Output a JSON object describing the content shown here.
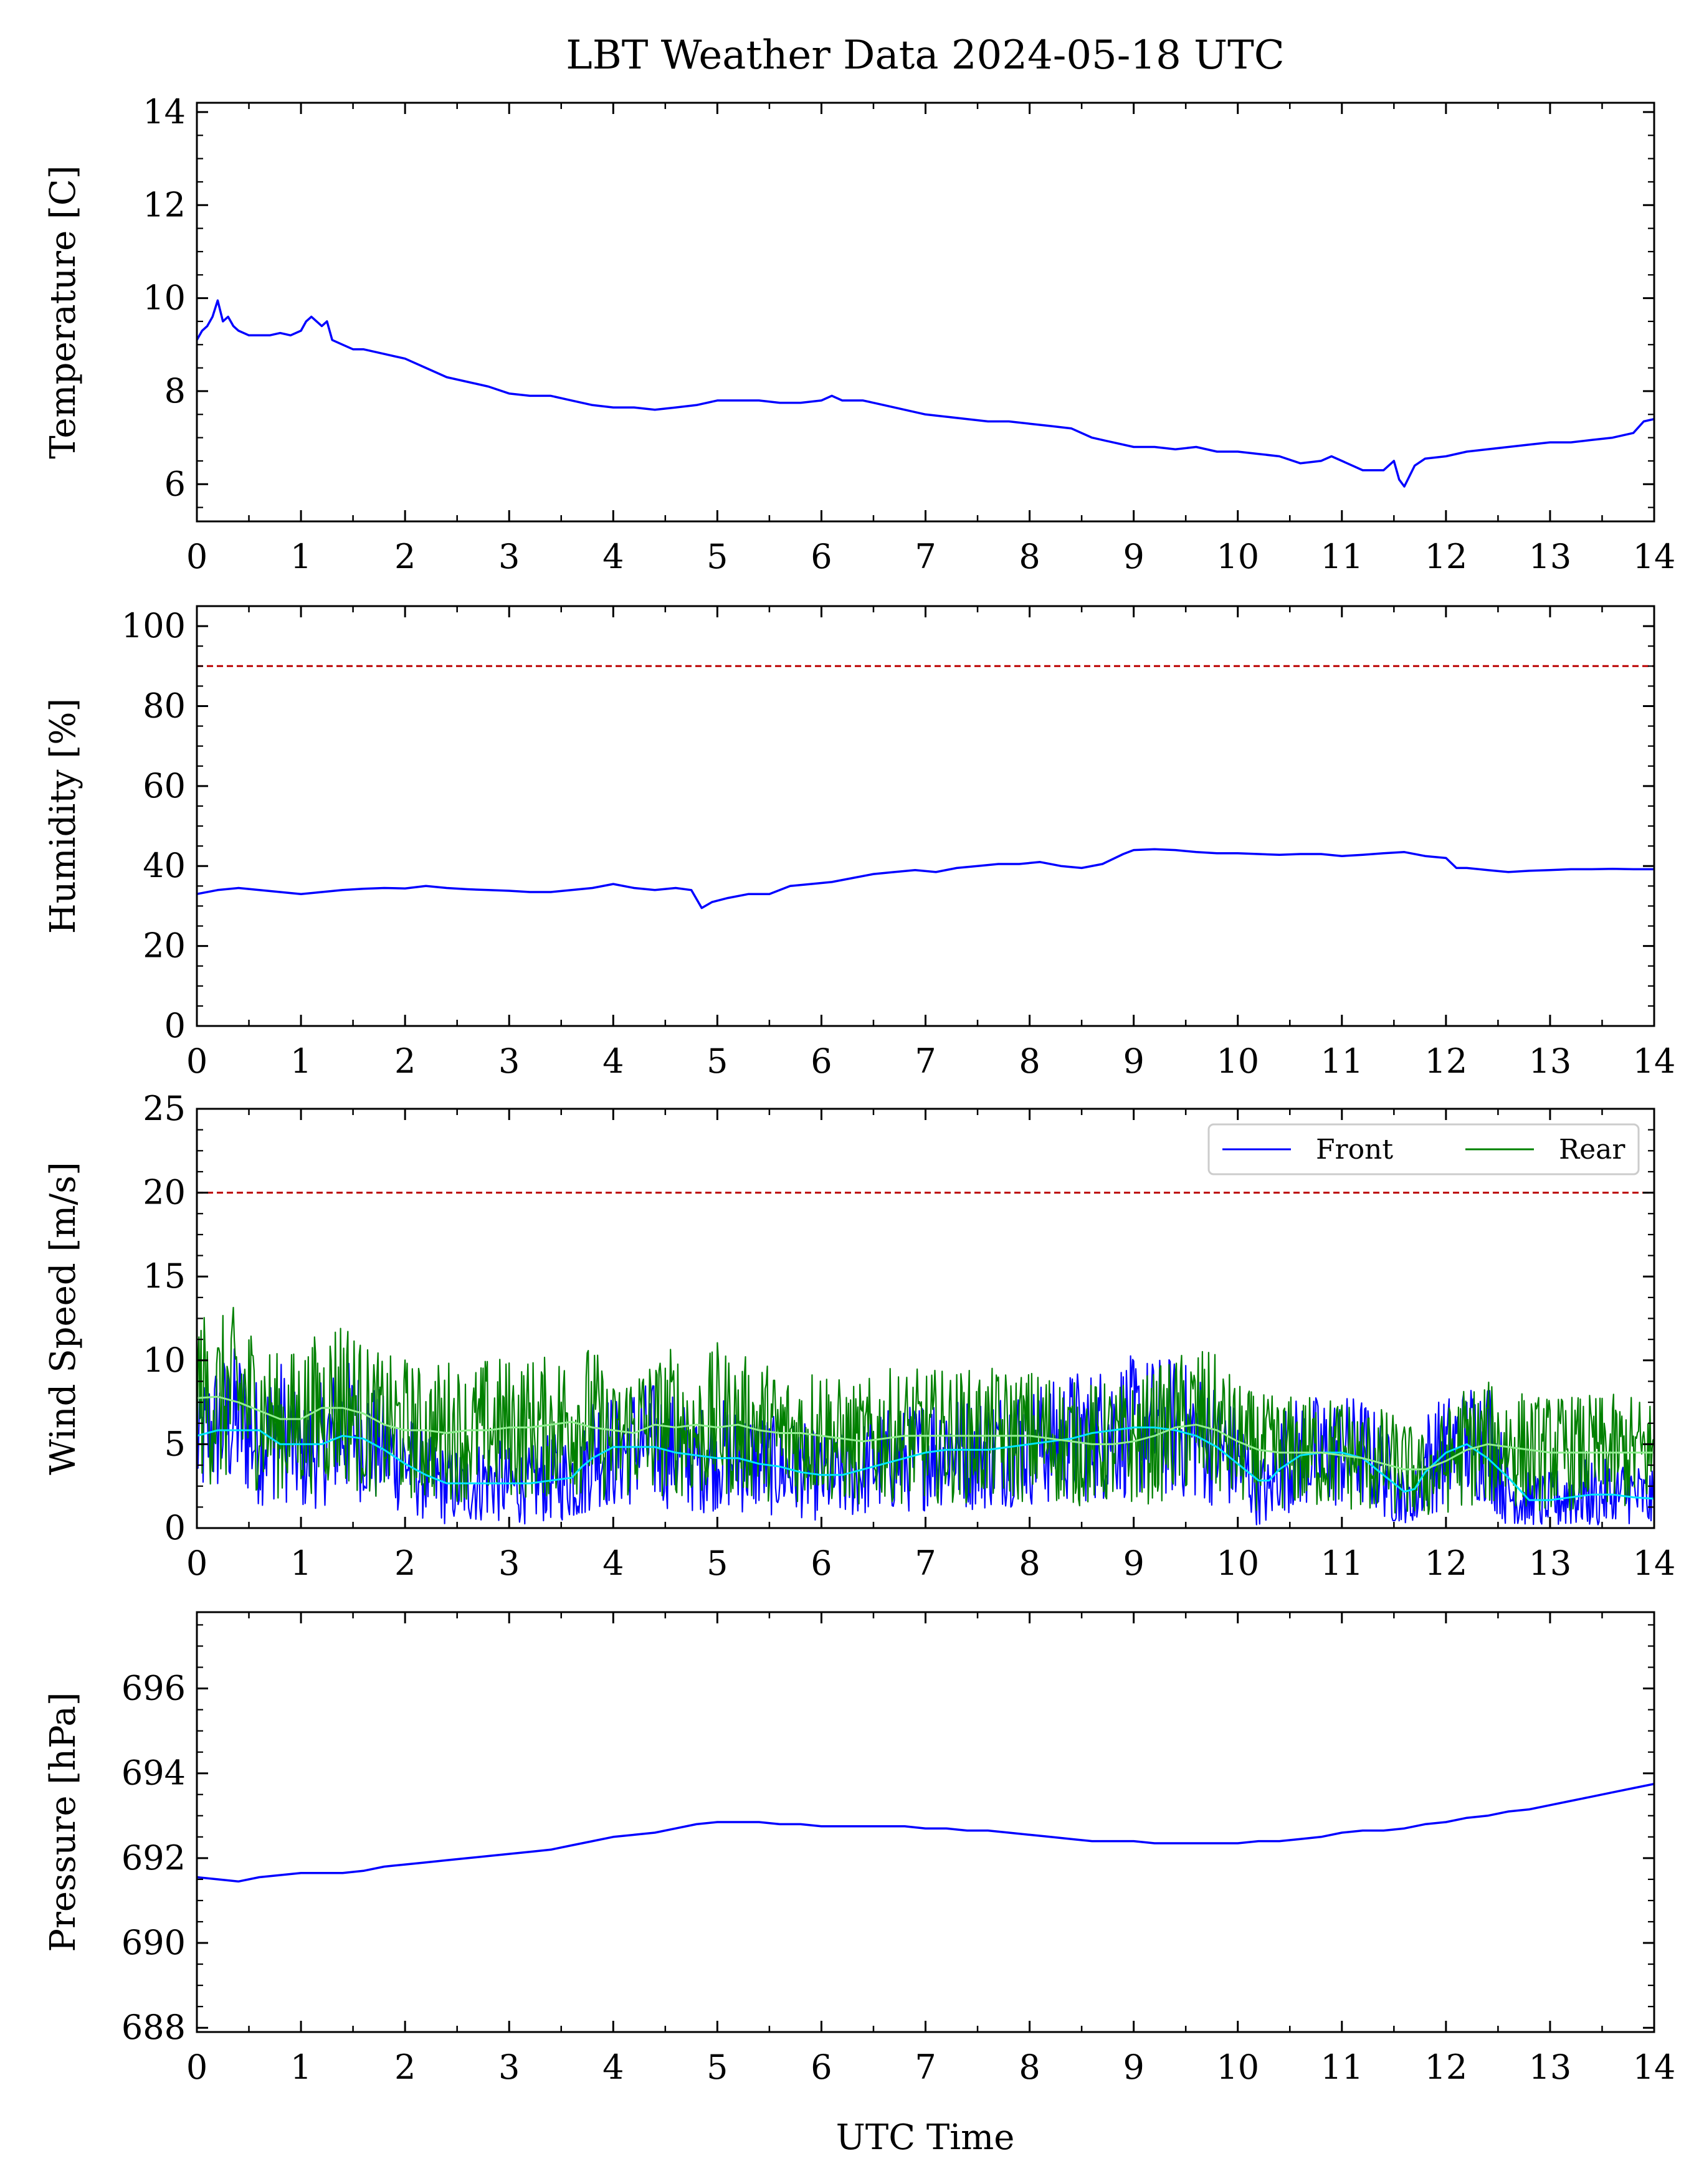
{
  "chart_data": {
    "type": "line",
    "title": "LBT Weather Data 2024-05-18 UTC",
    "xlabel": "UTC Time",
    "xlim": [
      0,
      14
    ],
    "x_ticks": [
      0,
      1,
      2,
      3,
      4,
      5,
      6,
      7,
      8,
      9,
      10,
      11,
      12,
      13,
      14
    ],
    "panels": [
      {
        "id": "temperature",
        "ylabel": "Temperature [C]",
        "ylim": [
          5.2,
          14.2
        ],
        "y_ticks": [
          6,
          8,
          10,
          12,
          14
        ],
        "series": [
          {
            "color": "#0000ff",
            "x": [
              0,
              0.05,
              0.1,
              0.15,
              0.2,
              0.25,
              0.3,
              0.35,
              0.4,
              0.5,
              0.6,
              0.7,
              0.8,
              0.9,
              1.0,
              1.05,
              1.1,
              1.15,
              1.2,
              1.25,
              1.3,
              1.4,
              1.5,
              1.6,
              1.8,
              2.0,
              2.2,
              2.4,
              2.6,
              2.8,
              3.0,
              3.2,
              3.4,
              3.6,
              3.8,
              4.0,
              4.2,
              4.4,
              4.6,
              4.8,
              5.0,
              5.2,
              5.4,
              5.6,
              5.8,
              6.0,
              6.1,
              6.2,
              6.4,
              6.6,
              6.8,
              7.0,
              7.2,
              7.4,
              7.6,
              7.8,
              8.0,
              8.2,
              8.4,
              8.6,
              8.8,
              9.0,
              9.2,
              9.4,
              9.6,
              9.8,
              10.0,
              10.2,
              10.4,
              10.6,
              10.8,
              10.9,
              11.0,
              11.2,
              11.4,
              11.5,
              11.55,
              11.6,
              11.7,
              11.8,
              12.0,
              12.2,
              12.4,
              12.6,
              12.8,
              13.0,
              13.2,
              13.4,
              13.6,
              13.8,
              13.9,
              14.0
            ],
            "y": [
              9.1,
              9.3,
              9.4,
              9.6,
              9.95,
              9.5,
              9.6,
              9.4,
              9.3,
              9.2,
              9.2,
              9.2,
              9.25,
              9.2,
              9.3,
              9.5,
              9.6,
              9.5,
              9.4,
              9.5,
              9.1,
              9.0,
              8.9,
              8.9,
              8.8,
              8.7,
              8.5,
              8.3,
              8.2,
              8.1,
              7.95,
              7.9,
              7.9,
              7.8,
              7.7,
              7.65,
              7.65,
              7.6,
              7.65,
              7.7,
              7.8,
              7.8,
              7.8,
              7.75,
              7.75,
              7.8,
              7.9,
              7.8,
              7.8,
              7.7,
              7.6,
              7.5,
              7.45,
              7.4,
              7.35,
              7.35,
              7.3,
              7.25,
              7.2,
              7.0,
              6.9,
              6.8,
              6.8,
              6.75,
              6.8,
              6.7,
              6.7,
              6.65,
              6.6,
              6.45,
              6.5,
              6.6,
              6.5,
              6.3,
              6.3,
              6.5,
              6.1,
              5.95,
              6.4,
              6.55,
              6.6,
              6.7,
              6.75,
              6.8,
              6.85,
              6.9,
              6.9,
              6.95,
              7.0,
              7.1,
              7.35,
              7.4
            ]
          }
        ]
      },
      {
        "id": "humidity",
        "ylabel": "Humidity [%]",
        "ylim": [
          0,
          105
        ],
        "y_ticks": [
          0,
          20,
          40,
          60,
          80,
          100
        ],
        "threshold": 90,
        "threshold_color": "#bb0000",
        "series": [
          {
            "color": "#0000ff",
            "x": [
              0,
              0.2,
              0.4,
              0.6,
              0.8,
              1.0,
              1.2,
              1.4,
              1.6,
              1.8,
              2.0,
              2.2,
              2.4,
              2.6,
              2.8,
              3.0,
              3.2,
              3.4,
              3.6,
              3.8,
              4.0,
              4.2,
              4.4,
              4.6,
              4.75,
              4.85,
              4.95,
              5.1,
              5.3,
              5.5,
              5.7,
              5.9,
              6.1,
              6.3,
              6.5,
              6.7,
              6.9,
              7.1,
              7.3,
              7.5,
              7.7,
              7.9,
              8.1,
              8.3,
              8.5,
              8.7,
              8.9,
              9.0,
              9.2,
              9.4,
              9.6,
              9.8,
              10.0,
              10.2,
              10.4,
              10.6,
              10.8,
              11.0,
              11.2,
              11.4,
              11.6,
              11.8,
              12.0,
              12.1,
              12.2,
              12.4,
              12.6,
              12.8,
              13.0,
              13.2,
              13.4,
              13.6,
              13.8,
              14.0
            ],
            "y": [
              33,
              34,
              34.5,
              34,
              33.5,
              33,
              33.5,
              34,
              34.3,
              34.5,
              34.4,
              35,
              34.5,
              34.2,
              34,
              33.8,
              33.5,
              33.5,
              34,
              34.5,
              35.5,
              34.5,
              34,
              34.5,
              34,
              29.5,
              31,
              32,
              33,
              33,
              35,
              35.5,
              36,
              37,
              38,
              38.5,
              39,
              38.5,
              39.5,
              40,
              40.5,
              40.5,
              41,
              40,
              39.5,
              40.5,
              43,
              44,
              44.2,
              44,
              43.5,
              43.2,
              43.2,
              43,
              42.8,
              43,
              43,
              42.5,
              42.8,
              43.2,
              43.5,
              42.5,
              42,
              39.5,
              39.5,
              39,
              38.5,
              38.8,
              39,
              39.2,
              39.2,
              39.3,
              39.2,
              39.2
            ]
          }
        ]
      },
      {
        "id": "wind_speed",
        "ylabel": "Wind Speed [m/s]",
        "ylim": [
          0,
          25
        ],
        "y_ticks": [
          0,
          5,
          10,
          15,
          20,
          25
        ],
        "threshold": 20,
        "threshold_color": "#bb0000",
        "legend_position": "top-right",
        "series": [
          {
            "name": "Front",
            "color": "#0000ff",
            "x": [
              0,
              0.2,
              0.4,
              0.6,
              0.8,
              1.0,
              1.2,
              1.4,
              1.6,
              1.8,
              2.0,
              2.2,
              2.4,
              2.6,
              2.8,
              3.0,
              3.2,
              3.4,
              3.6,
              3.7,
              3.8,
              4.0,
              4.2,
              4.4,
              4.6,
              4.8,
              5.0,
              5.2,
              5.4,
              5.6,
              5.8,
              6.0,
              6.2,
              6.4,
              6.6,
              6.8,
              7.0,
              7.2,
              7.4,
              7.6,
              7.8,
              8.0,
              8.2,
              8.4,
              8.6,
              8.8,
              9.0,
              9.2,
              9.4,
              9.6,
              9.8,
              10.0,
              10.2,
              10.3,
              10.4,
              10.6,
              10.8,
              11.0,
              11.2,
              11.4,
              11.6,
              11.7,
              11.8,
              12.0,
              12.2,
              12.4,
              12.6,
              12.8,
              13.0,
              13.2,
              13.4,
              13.6,
              13.8,
              14.0
            ],
            "y": [
              5,
              6,
              6.5,
              5,
              6,
              4,
              5,
              6,
              5.5,
              4.5,
              4,
              3,
              2.5,
              2.5,
              3,
              2.5,
              2.5,
              3,
              3,
              3,
              5,
              4.5,
              5,
              5,
              4.5,
              4,
              4.5,
              4,
              4,
              3.5,
              3.5,
              3,
              3,
              3.5,
              4,
              4,
              4.5,
              5,
              4.5,
              4.5,
              5,
              5,
              5,
              5.5,
              5.5,
              6,
              6,
              6,
              6,
              5.5,
              5,
              4,
              2.5,
              2,
              4,
              4.5,
              4.5,
              4.5,
              4.5,
              3.5,
              1.5,
              1.5,
              4,
              4.5,
              5,
              5.5,
              2,
              1.5,
              1.5,
              2,
              2,
              2,
              2,
              1.5
            ],
            "smoothed_color": "#00e5ff"
          },
          {
            "name": "Rear",
            "color": "#008000",
            "x": [
              0,
              0.2,
              0.4,
              0.6,
              0.8,
              1.0,
              1.2,
              1.4,
              1.6,
              1.8,
              2.0,
              2.2,
              2.4,
              2.6,
              2.8,
              3.0,
              3.2,
              3.4,
              3.6,
              3.8,
              4.0,
              4.2,
              4.4,
              4.6,
              4.8,
              5.0,
              5.2,
              5.4,
              5.6,
              5.8,
              6.0,
              6.2,
              6.4,
              6.6,
              6.8,
              7.0,
              7.2,
              7.4,
              7.6,
              7.8,
              8.0,
              8.2,
              8.4,
              8.6,
              8.8,
              9.0,
              9.2,
              9.4,
              9.6,
              9.8,
              10.0,
              10.2,
              10.4,
              10.6,
              10.8,
              11.0,
              11.2,
              11.4,
              11.6,
              11.8,
              12.0,
              12.2,
              12.4,
              12.6,
              12.8,
              13.0,
              13.2,
              13.4,
              13.6,
              13.8,
              14.0
            ],
            "y": [
              8,
              7.5,
              8,
              7,
              6,
              6.5,
              7,
              8,
              6.5,
              6,
              6,
              5.5,
              6,
              5.5,
              6,
              6,
              6,
              6,
              6.5,
              6.5,
              5,
              6,
              6,
              6.5,
              5.5,
              6.5,
              6,
              6,
              5.5,
              5.5,
              6,
              5,
              5,
              5.5,
              5.5,
              5.5,
              5.5,
              5.5,
              5.5,
              5.5,
              5.5,
              5.5,
              5,
              5,
              5,
              5,
              5.5,
              6,
              6.5,
              6,
              5,
              4.5,
              4.5,
              4.5,
              4.5,
              4.5,
              4,
              4,
              3.5,
              3,
              4,
              5,
              5,
              5,
              4.5,
              4.5,
              4.5,
              4.5,
              4.5,
              4.5,
              4.5
            ],
            "smoothed_color": "#90ee90"
          }
        ]
      },
      {
        "id": "pressure",
        "ylabel": "Pressure [hPa]",
        "ylim": [
          687.9,
          697.8
        ],
        "y_ticks": [
          688,
          690,
          692,
          694,
          696
        ],
        "series": [
          {
            "color": "#0000ff",
            "x": [
              0,
              0.2,
              0.4,
              0.6,
              0.8,
              1.0,
              1.2,
              1.4,
              1.6,
              1.8,
              2.0,
              2.2,
              2.4,
              2.6,
              2.8,
              3.0,
              3.2,
              3.4,
              3.6,
              3.8,
              4.0,
              4.2,
              4.4,
              4.6,
              4.8,
              5.0,
              5.2,
              5.4,
              5.6,
              5.8,
              6.0,
              6.2,
              6.4,
              6.6,
              6.8,
              7.0,
              7.2,
              7.4,
              7.6,
              7.8,
              8.0,
              8.2,
              8.4,
              8.6,
              8.8,
              9.0,
              9.2,
              9.4,
              9.6,
              9.8,
              10.0,
              10.2,
              10.4,
              10.6,
              10.8,
              11.0,
              11.2,
              11.4,
              11.6,
              11.8,
              12.0,
              12.2,
              12.4,
              12.6,
              12.8,
              13.0,
              13.2,
              13.4,
              13.6,
              13.8,
              14.0
            ],
            "y": [
              691.55,
              691.5,
              691.45,
              691.55,
              691.6,
              691.65,
              691.65,
              691.65,
              691.7,
              691.8,
              691.85,
              691.9,
              691.95,
              692.0,
              692.05,
              692.1,
              692.15,
              692.2,
              692.3,
              692.4,
              692.5,
              692.55,
              692.6,
              692.7,
              692.8,
              692.85,
              692.85,
              692.85,
              692.8,
              692.8,
              692.75,
              692.75,
              692.75,
              692.75,
              692.75,
              692.7,
              692.7,
              692.65,
              692.65,
              692.6,
              692.55,
              692.5,
              692.45,
              692.4,
              692.4,
              692.4,
              692.35,
              692.35,
              692.35,
              692.35,
              692.35,
              692.4,
              692.4,
              692.45,
              692.5,
              692.6,
              692.65,
              692.65,
              692.7,
              692.8,
              692.85,
              692.95,
              693.0,
              693.1,
              693.15,
              693.25,
              693.35,
              693.45,
              693.55,
              693.65,
              693.75
            ]
          }
        ]
      }
    ]
  }
}
